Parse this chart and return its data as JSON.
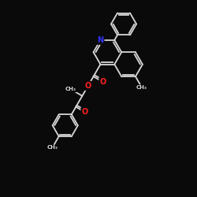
{
  "bg_color": "#0a0a0a",
  "bond_color": "#d8d8d8",
  "N_color": "#3333ff",
  "O_color": "#ff2020",
  "bond_width": 1.3,
  "figsize": [
    2.5,
    2.5
  ],
  "dpi": 100,
  "xlim": [
    0,
    10
  ],
  "ylim": [
    0,
    10
  ]
}
